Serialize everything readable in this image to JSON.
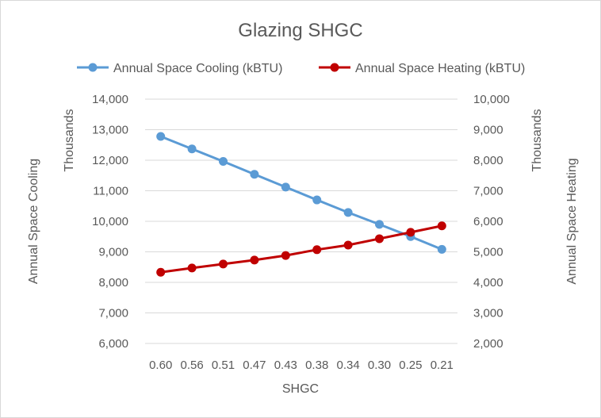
{
  "chart_data": {
    "type": "line",
    "title": "Glazing SHGC",
    "xlabel": "SHGC",
    "ylabel_left": "Annual Space Cooling",
    "ylabel_right": "Annual Space Heating",
    "left_units_label": "Thousands",
    "right_units_label": "Thousands",
    "categories": [
      "0.60",
      "0.56",
      "0.51",
      "0.47",
      "0.43",
      "0.38",
      "0.34",
      "0.30",
      "0.25",
      "0.21"
    ],
    "y_left_ticks": [
      "6,000",
      "7,000",
      "8,000",
      "9,000",
      "10,000",
      "11,000",
      "12,000",
      "13,000",
      "14,000"
    ],
    "y_right_ticks": [
      "2,000",
      "3,000",
      "4,000",
      "5,000",
      "6,000",
      "7,000",
      "8,000",
      "9,000",
      "10,000"
    ],
    "ylim_left": [
      6000,
      14000
    ],
    "ylim_right": [
      2000,
      10000
    ],
    "grid": true,
    "legend_position": "top",
    "series": [
      {
        "name": "Annual Space Cooling (kBTU)",
        "axis": "left",
        "color": "#5b9bd5",
        "values": [
          12780,
          12370,
          11960,
          11540,
          11120,
          10700,
          10290,
          9900,
          9500,
          9080
        ]
      },
      {
        "name": "Annual Space Heating (kBTU)",
        "axis": "right",
        "color": "#c00000",
        "values": [
          4330,
          4470,
          4600,
          4730,
          4880,
          5070,
          5220,
          5430,
          5640,
          5850
        ]
      }
    ]
  }
}
